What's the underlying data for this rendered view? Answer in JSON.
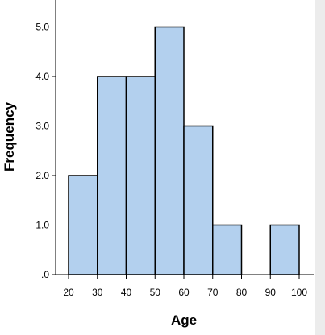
{
  "chart_data": {
    "type": "bar",
    "subtype": "histogram",
    "title": "",
    "xlabel": "Age",
    "ylabel": "Frequency",
    "bins": [
      {
        "start": 20,
        "end": 30,
        "count": 2
      },
      {
        "start": 30,
        "end": 40,
        "count": 4
      },
      {
        "start": 40,
        "end": 50,
        "count": 4
      },
      {
        "start": 50,
        "end": 60,
        "count": 5
      },
      {
        "start": 60,
        "end": 70,
        "count": 3
      },
      {
        "start": 70,
        "end": 80,
        "count": 1
      },
      {
        "start": 80,
        "end": 90,
        "count": 0
      },
      {
        "start": 90,
        "end": 100,
        "count": 1
      }
    ],
    "xlim": [
      20,
      100
    ],
    "ylim": [
      0,
      5
    ],
    "x_ticks": [
      20,
      30,
      40,
      50,
      60,
      70,
      80,
      90,
      100
    ],
    "y_ticks": [
      0,
      1,
      2,
      3,
      4,
      5
    ],
    "y_tick_labels": [
      ".0",
      "1.0",
      "2.0",
      "3.0",
      "4.0",
      "5.0"
    ],
    "grid": false,
    "legend": "none",
    "colors": {
      "bar_fill": "#b3d0ee",
      "bar_stroke": "#000000",
      "axis": "#000000",
      "background": "#ffffff",
      "right_panel": "#ececec"
    }
  }
}
